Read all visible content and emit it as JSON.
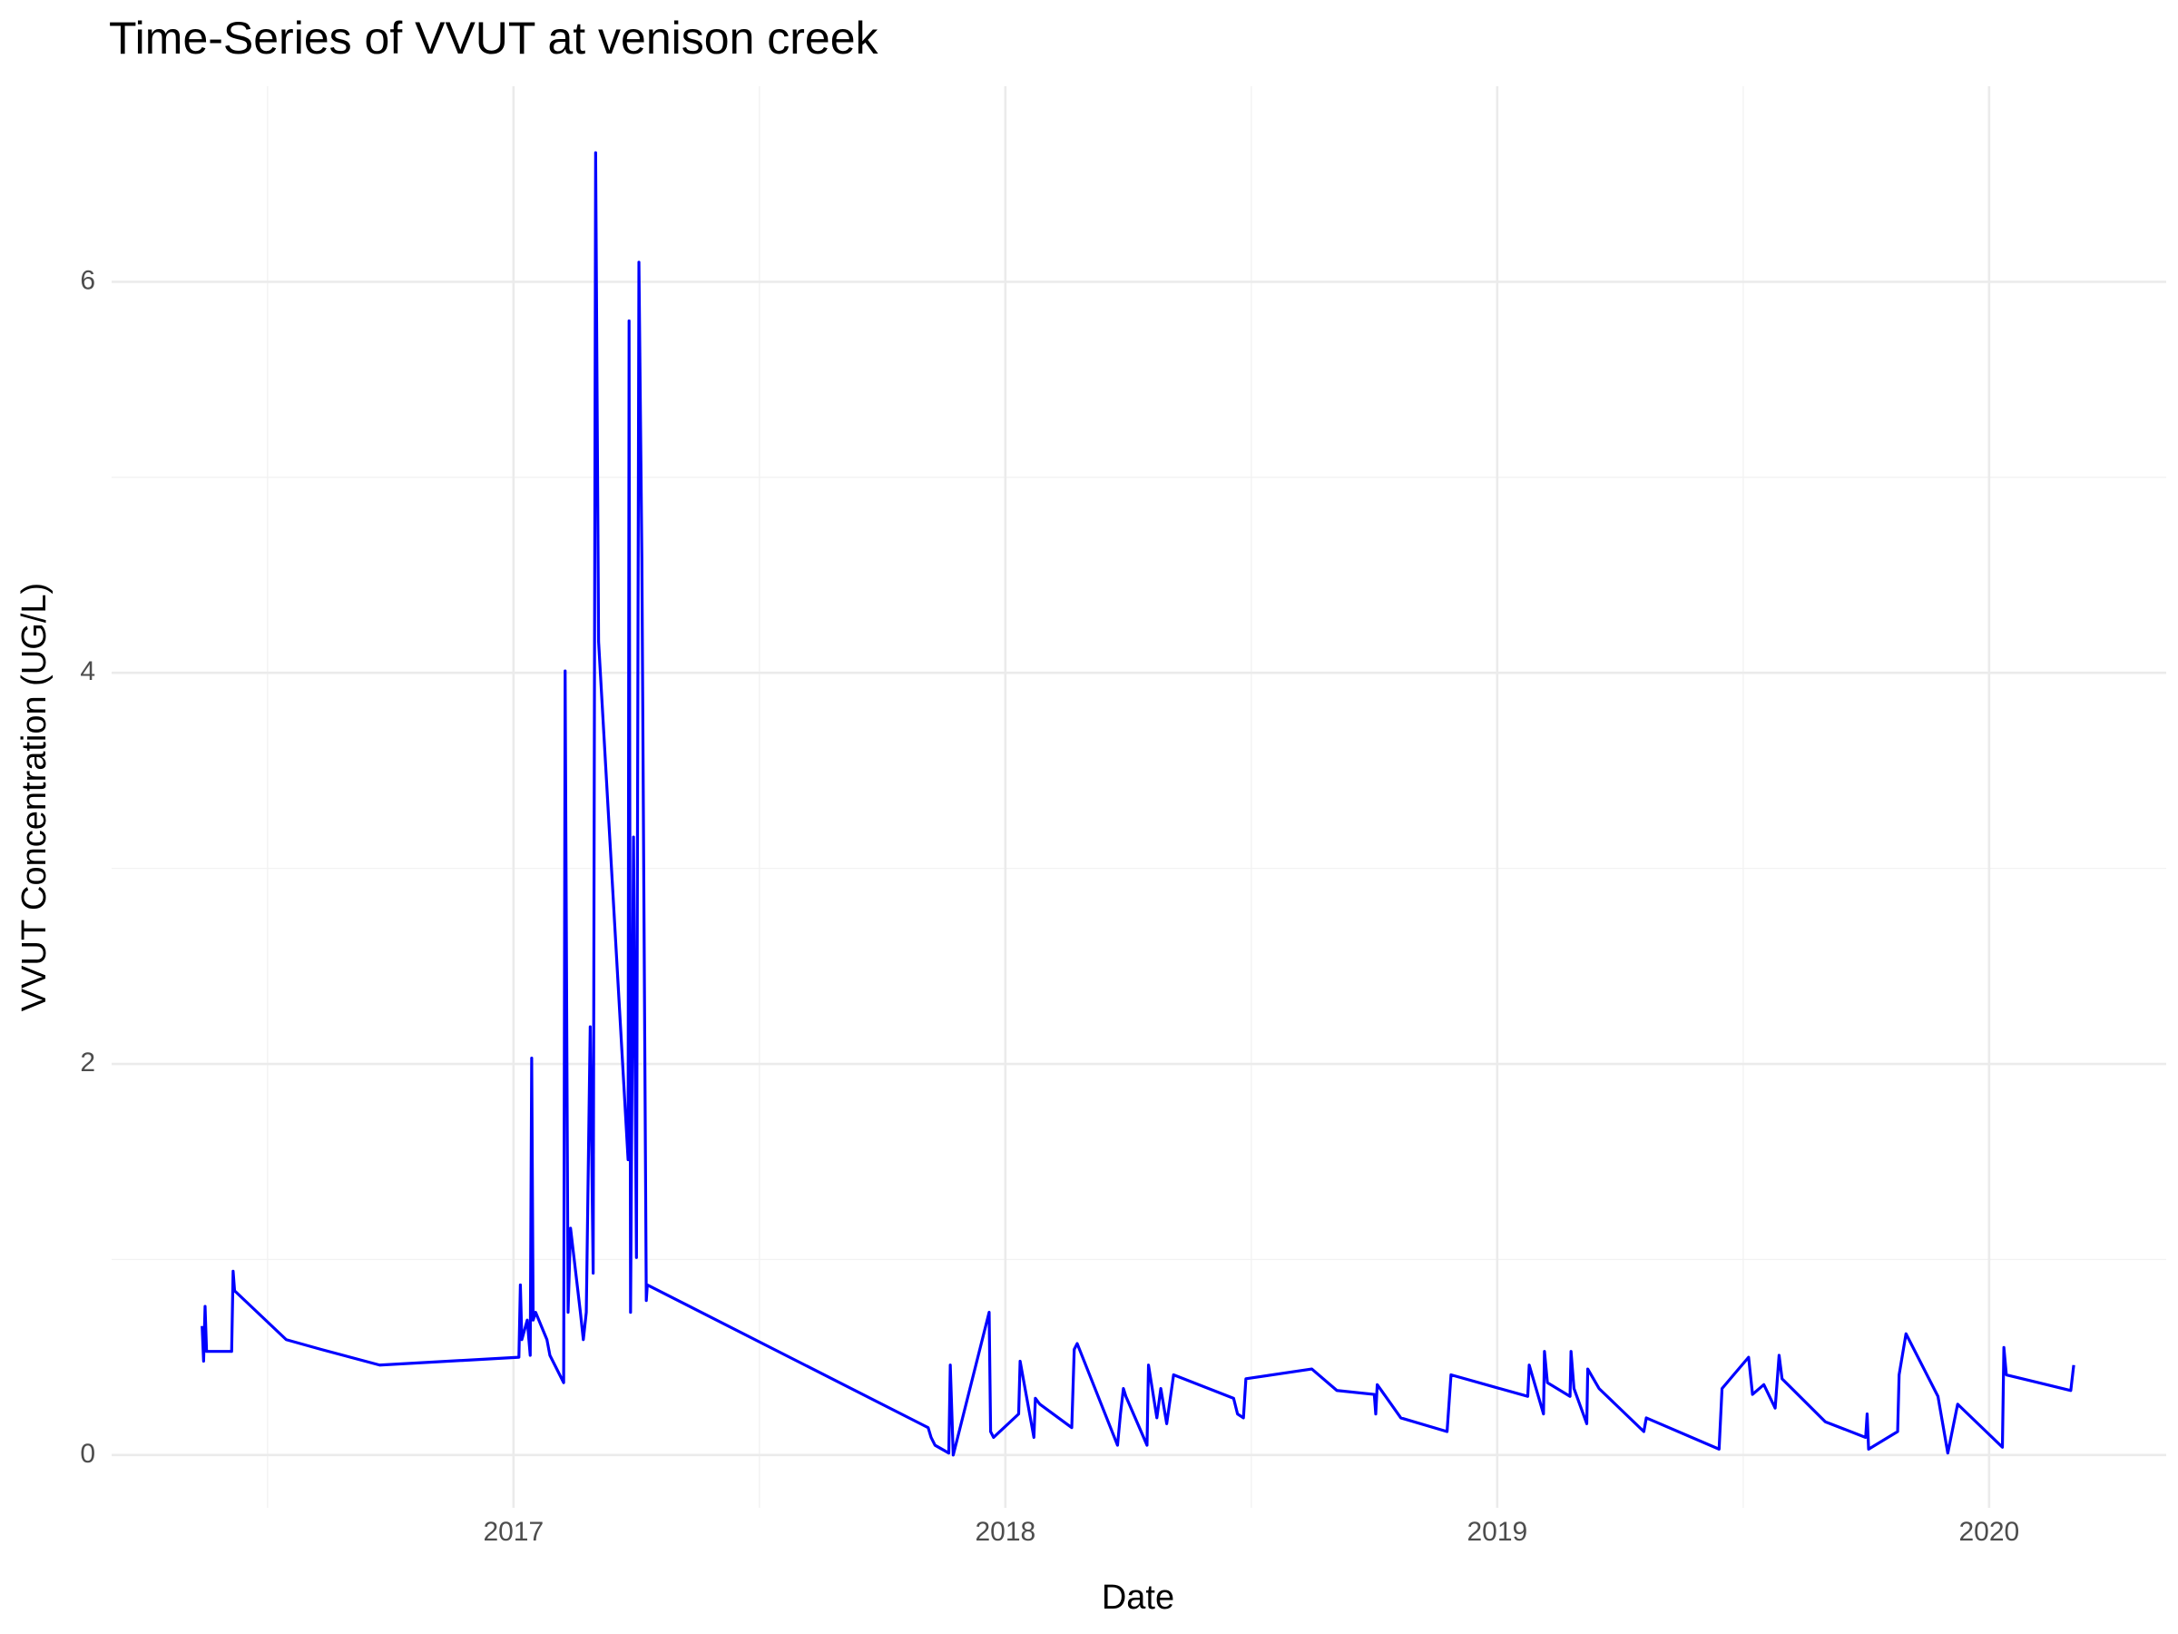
{
  "chart_data": {
    "type": "line",
    "title": "Time-Series of VVUT at venison creek",
    "x_label": "Date",
    "y_label": "VVUT Concentration (UG/L)",
    "xlim": [
      2016.183,
      2020.36
    ],
    "xticks": [
      2017,
      2018,
      2019,
      2020
    ],
    "ylim": [
      -0.27,
      7.0
    ],
    "yticks": [
      0,
      2,
      4,
      6
    ],
    "grid": true,
    "x": [
      2016.367,
      2016.37,
      2016.373,
      2016.376,
      2016.427,
      2016.43,
      2016.433,
      2016.538,
      2016.609,
      2016.728,
      2017.011,
      2017.014,
      2017.017,
      2017.028,
      2017.034,
      2017.037,
      2017.04,
      2017.045,
      2017.068,
      2017.074,
      2017.102,
      2017.105,
      2017.111,
      2017.116,
      2017.136,
      2017.142,
      2017.148,
      2017.156,
      2017.162,
      2017.167,
      2017.173,
      2017.233,
      2017.235,
      2017.238,
      2017.244,
      2017.25,
      2017.255,
      2017.261,
      2017.27,
      2017.272,
      2017.843,
      2017.849,
      2017.857,
      2017.885,
      2017.888,
      2017.894,
      2017.967,
      2017.97,
      2017.976,
      2018.027,
      2018.03,
      2018.058,
      2018.061,
      2018.07,
      2018.135,
      2018.14,
      2018.146,
      2018.228,
      2018.234,
      2018.24,
      2018.245,
      2018.288,
      2018.291,
      2018.308,
      2018.316,
      2018.328,
      2018.342,
      2018.464,
      2018.472,
      2018.484,
      2018.489,
      2018.623,
      2018.674,
      2018.75,
      2018.753,
      2018.756,
      2018.804,
      2018.898,
      2018.906,
      2019.062,
      2019.065,
      2019.094,
      2019.096,
      2019.102,
      2019.148,
      2019.15,
      2019.156,
      2019.182,
      2019.184,
      2019.207,
      2019.298,
      2019.303,
      2019.451,
      2019.457,
      2019.511,
      2019.519,
      2019.542,
      2019.565,
      2019.573,
      2019.579,
      2019.667,
      2019.749,
      2019.752,
      2019.755,
      2019.814,
      2019.817,
      2019.831,
      2019.896,
      2019.916,
      2019.936,
      2020.027,
      2020.03,
      2020.035,
      2020.166,
      2020.172
    ],
    "series": [
      {
        "name": "VVUT",
        "color": "#0000ff",
        "values": [
          0.66,
          0.48,
          0.76,
          0.53,
          0.53,
          0.94,
          0.84,
          0.59,
          0.54,
          0.46,
          0.5,
          0.87,
          0.59,
          0.69,
          0.51,
          2.03,
          0.69,
          0.73,
          0.59,
          0.51,
          0.37,
          4.01,
          0.73,
          1.16,
          0.73,
          0.59,
          0.73,
          2.19,
          0.93,
          6.66,
          4.16,
          1.51,
          5.8,
          0.73,
          3.16,
          1.01,
          6.1,
          4.59,
          0.79,
          0.87,
          0.14,
          0.09,
          0.05,
          0.01,
          0.46,
          0,
          0.73,
          0.12,
          0.09,
          0.21,
          0.48,
          0.09,
          0.29,
          0.26,
          0.14,
          0.54,
          0.57,
          0.05,
          0.21,
          0.34,
          0.3,
          0.05,
          0.46,
          0.19,
          0.34,
          0.16,
          0.41,
          0.29,
          0.21,
          0.19,
          0.39,
          0.44,
          0.33,
          0.31,
          0.21,
          0.36,
          0.19,
          0.12,
          0.41,
          0.3,
          0.46,
          0.21,
          0.53,
          0.37,
          0.3,
          0.53,
          0.34,
          0.16,
          0.44,
          0.34,
          0.12,
          0.19,
          0.03,
          0.34,
          0.5,
          0.31,
          0.36,
          0.24,
          0.51,
          0.39,
          0.17,
          0.09,
          0.21,
          0.03,
          0.12,
          0.41,
          0.62,
          0.3,
          0.01,
          0.26,
          0.04,
          0.55,
          0.41,
          0.33,
          0.46
        ]
      }
    ]
  }
}
